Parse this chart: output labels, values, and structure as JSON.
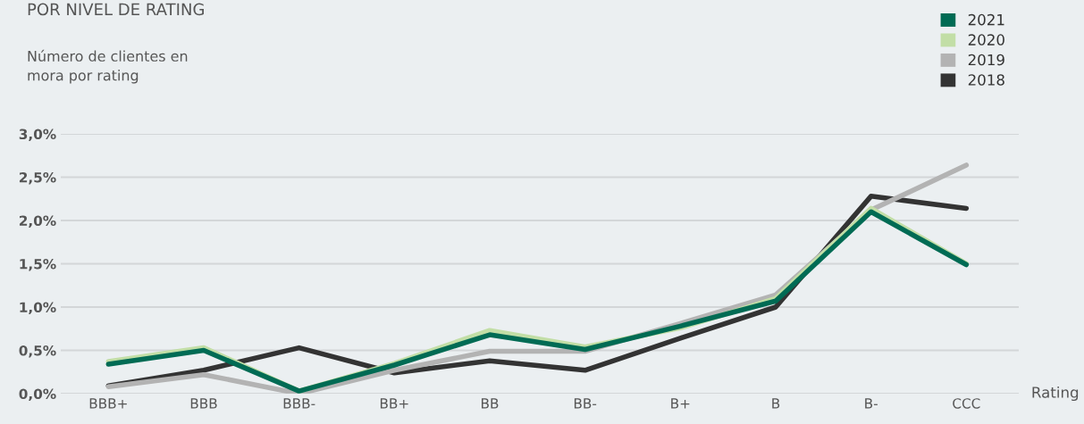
{
  "chart_data": {
    "type": "line",
    "title": "POR NIVEL DE RATING",
    "subtitle": "Número de clientes en\nmora por rating",
    "xlabel": "Rating",
    "categories": [
      "BBB+",
      "BBB",
      "BBB-",
      "BB+",
      "BB",
      "BB-",
      "B+",
      "B",
      "B-",
      "CCC"
    ],
    "series": [
      {
        "name": "2021",
        "color": "#006b54",
        "values": [
          0.34,
          0.5,
          0.03,
          0.33,
          0.68,
          0.51,
          0.78,
          1.07,
          2.1,
          1.49
        ]
      },
      {
        "name": "2020",
        "color": "#c2dea6",
        "values": [
          0.37,
          0.53,
          0.03,
          0.35,
          0.73,
          0.54,
          0.76,
          1.1,
          2.14,
          1.5
        ]
      },
      {
        "name": "2019",
        "color": "#b3b3b3",
        "values": [
          0.08,
          0.22,
          0.0,
          0.27,
          0.49,
          0.49,
          0.81,
          1.14,
          2.12,
          2.64
        ]
      },
      {
        "name": "2018",
        "color": "#333333",
        "values": [
          0.09,
          0.27,
          0.53,
          0.24,
          0.38,
          0.27,
          0.64,
          1.0,
          2.28,
          2.14
        ]
      }
    ],
    "ylim": [
      0,
      3.0
    ],
    "yticks": [
      {
        "value": 0,
        "label": "0,0%"
      },
      {
        "value": 0.5,
        "label": "0,5%"
      },
      {
        "value": 1.0,
        "label": "1,0%"
      },
      {
        "value": 1.5,
        "label": "1,5%"
      },
      {
        "value": 2.0,
        "label": "2,0%"
      },
      {
        "value": 2.5,
        "label": "2,5%"
      },
      {
        "value": 3.0,
        "label": "3,0%"
      }
    ],
    "grid": "y",
    "legend": "top right",
    "marker": "none",
    "line_style": "solid"
  }
}
